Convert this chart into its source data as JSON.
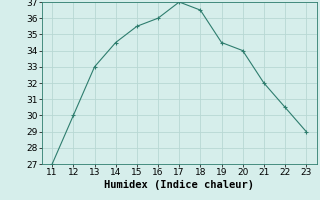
{
  "x": [
    11,
    12,
    13,
    14,
    15,
    16,
    17,
    18,
    19,
    20,
    21,
    22,
    23
  ],
  "y": [
    27,
    30,
    33,
    34.5,
    35.5,
    36,
    37,
    36.5,
    34.5,
    34,
    32,
    30.5,
    29
  ],
  "xlabel": "Humidex (Indice chaleur)",
  "ylim": [
    27,
    37
  ],
  "xlim": [
    10.5,
    23.5
  ],
  "yticks": [
    27,
    28,
    29,
    30,
    31,
    32,
    33,
    34,
    35,
    36,
    37
  ],
  "xticks": [
    11,
    12,
    13,
    14,
    15,
    16,
    17,
    18,
    19,
    20,
    21,
    22,
    23
  ],
  "line_color": "#2e7d6e",
  "marker_color": "#2e7d6e",
  "bg_color": "#d6eeeb",
  "grid_color": "#b8d8d4",
  "tick_fontsize": 6.5,
  "xlabel_fontsize": 7.5
}
